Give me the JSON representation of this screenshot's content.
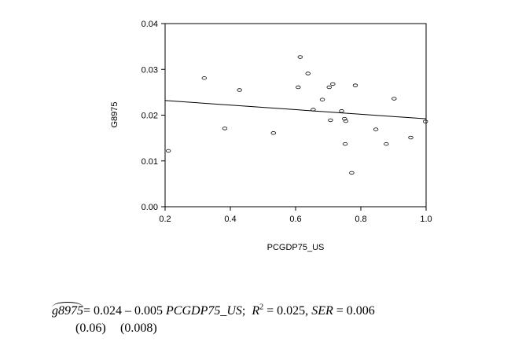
{
  "chart_data": {
    "type": "scatter",
    "title": "",
    "xlabel": "PCGDP75_US",
    "ylabel": "G8975",
    "xlim": [
      0.2,
      1.0
    ],
    "ylim": [
      0.0,
      0.04
    ],
    "xticks": [
      "0.2",
      "0.4",
      "0.6",
      "0.8",
      "1.0"
    ],
    "yticks": [
      "0.00",
      "0.01",
      "0.02",
      "0.03",
      "0.04"
    ],
    "grid": false,
    "points": [
      {
        "x": 0.21,
        "y": 0.0122
      },
      {
        "x": 0.32,
        "y": 0.0281
      },
      {
        "x": 0.383,
        "y": 0.0171
      },
      {
        "x": 0.428,
        "y": 0.0255
      },
      {
        "x": 0.532,
        "y": 0.0161
      },
      {
        "x": 0.608,
        "y": 0.0261
      },
      {
        "x": 0.614,
        "y": 0.0327
      },
      {
        "x": 0.638,
        "y": 0.0291
      },
      {
        "x": 0.654,
        "y": 0.0212
      },
      {
        "x": 0.682,
        "y": 0.0234
      },
      {
        "x": 0.703,
        "y": 0.0261
      },
      {
        "x": 0.707,
        "y": 0.0189
      },
      {
        "x": 0.714,
        "y": 0.0268
      },
      {
        "x": 0.741,
        "y": 0.0209
      },
      {
        "x": 0.75,
        "y": 0.0192
      },
      {
        "x": 0.752,
        "y": 0.0137
      },
      {
        "x": 0.754,
        "y": 0.0187
      },
      {
        "x": 0.772,
        "y": 0.0074
      },
      {
        "x": 0.783,
        "y": 0.0265
      },
      {
        "x": 0.846,
        "y": 0.0169
      },
      {
        "x": 0.878,
        "y": 0.0137
      },
      {
        "x": 0.902,
        "y": 0.0236
      },
      {
        "x": 0.953,
        "y": 0.0151
      },
      {
        "x": 0.998,
        "y": 0.0186
      }
    ],
    "fit_line": {
      "x": [
        0.2,
        1.0
      ],
      "y": [
        0.0232,
        0.0192
      ]
    }
  },
  "equation": {
    "lhs": "g8975",
    "eq_sign": "=",
    "intercept": "0.024",
    "minus": "–",
    "slope": "0.005",
    "regressor": "PCGDP75_US",
    "sep1": ";",
    "r2_symbol": "R",
    "r2_exp": "2",
    "r2_value": "= 0.025,",
    "ser_symbol": "SER",
    "ser_value": "= 0.006",
    "se_intercept": "(0.06)",
    "se_slope": "(0.008)"
  }
}
